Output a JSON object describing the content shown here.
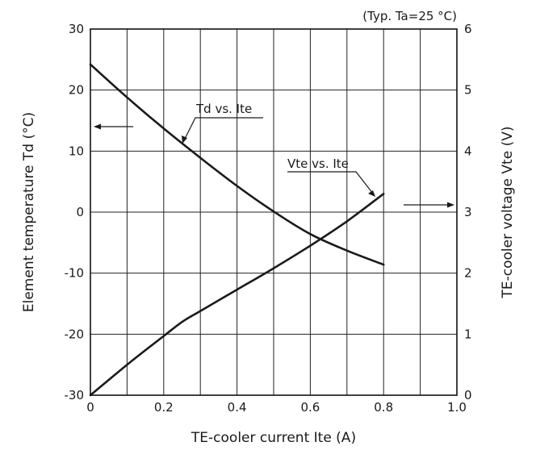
{
  "chart_data": {
    "type": "line",
    "note": "(Typ. Ta=25 °C)",
    "xlabel": "TE-cooler current Ite (A)",
    "ylabel_left": "Element temperature Td (°C)",
    "ylabel_right": "TE-cooler voltage Vte (V)",
    "xlim": [
      0,
      1.0
    ],
    "ylim_left": [
      -30,
      30
    ],
    "ylim_right": [
      0,
      6
    ],
    "x_ticks": [
      "0",
      "0.2",
      "0.4",
      "0.6",
      "0.8",
      "1.0"
    ],
    "y_left_ticks": [
      "30",
      "20",
      "10",
      "0",
      "-10",
      "-20",
      "-30"
    ],
    "y_right_ticks": [
      "6",
      "5",
      "4",
      "3",
      "2",
      "1",
      "0"
    ],
    "grid": true,
    "series": [
      {
        "name": "Td vs. Ite",
        "axis": "left",
        "x": [
          0,
          0.1,
          0.2,
          0.3,
          0.4,
          0.5,
          0.6,
          0.7,
          0.8
        ],
        "y": [
          24.2,
          18.8,
          13.7,
          8.9,
          4.3,
          0.1,
          -3.6,
          -6.3,
          -8.6
        ]
      },
      {
        "name": "Vte vs. Ite",
        "axis": "right",
        "x": [
          0,
          0.1,
          0.2,
          0.25,
          0.3,
          0.4,
          0.5,
          0.6,
          0.7,
          0.8
        ],
        "y": [
          0.0,
          0.5,
          0.97,
          1.2,
          1.38,
          1.73,
          2.08,
          2.45,
          2.85,
          3.3
        ]
      }
    ]
  }
}
